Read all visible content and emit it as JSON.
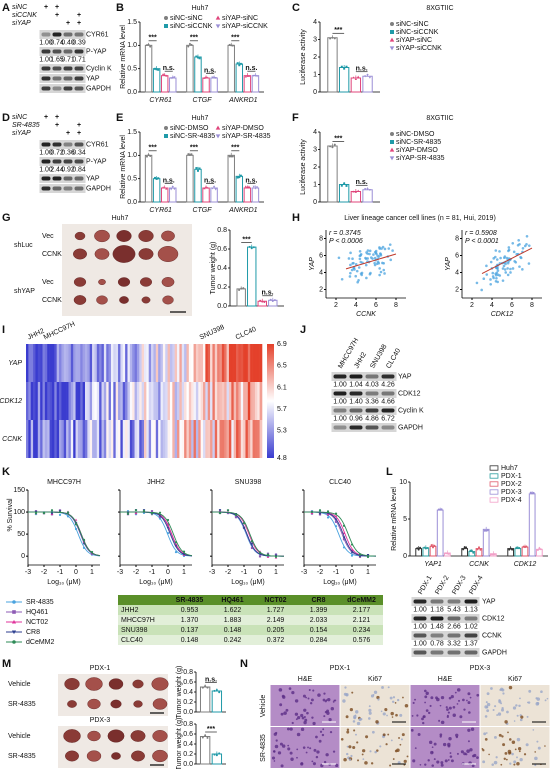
{
  "panels": {
    "A": {
      "label": "A",
      "treatments": [
        {
          "name": "siNC",
          "signs": [
            "+",
            "+",
            null,
            null
          ]
        },
        {
          "name": "siCCNK",
          "signs": [
            null,
            "+",
            null,
            "+"
          ]
        },
        {
          "name": "siYAP",
          "signs": [
            null,
            null,
            "+",
            "+"
          ]
        }
      ],
      "blots": [
        {
          "name": "CYR61",
          "quant": [
            "1.00",
            "0.74",
            "0.40",
            "0.39"
          ]
        },
        {
          "name": "P-YAP",
          "quant": [
            "1.00",
            "1.65",
            "0.71",
            "0.71"
          ]
        },
        {
          "name": "Cyclin K"
        },
        {
          "name": "YAP"
        },
        {
          "name": "GAPDH"
        }
      ]
    },
    "B": {
      "label": "B",
      "type": "bar",
      "title": "Huh7",
      "ylabel": "Relative mRNA level",
      "categories": [
        "CYR61",
        "CTGF",
        "ANKRD1"
      ],
      "ylim": [
        0,
        1.5
      ],
      "yticks": [
        {
          "value": 0,
          "label": "0.0"
        },
        0.5,
        {
          "value": 1,
          "label": "1.0"
        },
        1.5
      ],
      "series": [
        {
          "name": "siNC-siNC",
          "color": "#7f7f7f",
          "marker": "circle",
          "values": [
            1,
            1,
            1
          ]
        },
        {
          "name": "siNC-siCCNK",
          "color": "#1f9aa8",
          "marker": "square",
          "values": [
            0.5,
            0.75,
            0.6
          ]
        },
        {
          "name": "siYAP-siNC",
          "color": "#e0457b",
          "marker": "triangle",
          "values": [
            0.35,
            0.3,
            0.35
          ]
        },
        {
          "name": "siYAP-siCCNK",
          "color": "#9b8fd6",
          "marker": "triangle-down",
          "values": [
            0.3,
            0.3,
            0.35
          ]
        }
      ],
      "annotations": [
        "***",
        "n.s.",
        "***",
        "n.s.",
        "***",
        "n.s."
      ]
    },
    "C": {
      "label": "C",
      "type": "bar",
      "title": "8XGTIIC",
      "ylabel": "Luciferase activity",
      "ylim": [
        0,
        4
      ],
      "yticks": [
        0,
        1,
        2,
        3,
        4
      ],
      "series": [
        {
          "name": "siNC-siNC",
          "color": "#7f7f7f",
          "marker": "circle",
          "values": [
            3.1
          ]
        },
        {
          "name": "siNC-siCCNK",
          "color": "#1f9aa8",
          "marker": "square",
          "values": [
            1.4
          ]
        },
        {
          "name": "siYAP-siNC",
          "color": "#e0457b",
          "marker": "triangle",
          "values": [
            0.8
          ]
        },
        {
          "name": "siYAP-siCCNK",
          "color": "#9b8fd6",
          "marker": "triangle-down",
          "values": [
            0.9
          ]
        }
      ],
      "annotations": [
        "***",
        "n.s."
      ]
    },
    "D": {
      "label": "D",
      "treatments": [
        {
          "name": "siNC",
          "signs": [
            "+",
            "+",
            null,
            null
          ]
        },
        {
          "name": "SR-4835",
          "signs": [
            null,
            "+",
            null,
            "+"
          ]
        },
        {
          "name": "siYAP",
          "signs": [
            null,
            null,
            "+",
            "+"
          ]
        }
      ],
      "blots": [
        {
          "name": "CYR61",
          "quant": [
            "1.00",
            "0.72",
            "0.36",
            "0.34"
          ]
        },
        {
          "name": "P-YAP",
          "quant": [
            "1.00",
            "2.44",
            "0.92",
            "0.84"
          ]
        },
        {
          "name": "YAP"
        },
        {
          "name": "GAPDH"
        }
      ]
    },
    "E": {
      "label": "E",
      "type": "bar",
      "title": "Huh7",
      "ylabel": "Relative mRNA level",
      "categories": [
        "CYR61",
        "CTGF",
        "ANKRD1"
      ],
      "ylim": [
        0,
        1.5
      ],
      "yticks": [
        {
          "value": 0,
          "label": "0.0"
        },
        0.5,
        {
          "value": 1,
          "label": "1.0"
        },
        1.5
      ],
      "series": [
        {
          "name": "siNC-DMSO",
          "color": "#7f7f7f",
          "marker": "circle",
          "values": [
            1,
            1,
            1
          ]
        },
        {
          "name": "siNC-SR-4835",
          "color": "#1f9aa8",
          "marker": "square",
          "values": [
            0.5,
            0.7,
            0.55
          ]
        },
        {
          "name": "siYAP-DMSO",
          "color": "#e0457b",
          "marker": "triangle",
          "values": [
            0.3,
            0.3,
            0.3
          ]
        },
        {
          "name": "siYAP-SR-4835",
          "color": "#9b8fd6",
          "marker": "triangle-down",
          "values": [
            0.3,
            0.3,
            0.3
          ]
        }
      ],
      "annotations": [
        "***",
        "n.s.",
        "***",
        "n.s.",
        "***",
        "n.s."
      ]
    },
    "F": {
      "label": "F",
      "type": "bar",
      "title": "8XGTIIC",
      "ylabel": "Luciferase activity",
      "ylim": [
        0,
        4
      ],
      "yticks": [
        0,
        1,
        2,
        3,
        4
      ],
      "series": [
        {
          "name": "siNC-DMSO",
          "color": "#7f7f7f",
          "marker": "circle",
          "values": [
            3.2
          ]
        },
        {
          "name": "siNC-SR-4835",
          "color": "#1f9aa8",
          "marker": "square",
          "values": [
            1.0
          ]
        },
        {
          "name": "siYAP-DMSO",
          "color": "#e0457b",
          "marker": "triangle",
          "values": [
            0.6
          ]
        },
        {
          "name": "siYAP-SR-4835",
          "color": "#9b8fd6",
          "marker": "triangle-down",
          "values": [
            0.7
          ]
        }
      ],
      "annotations": [
        "***",
        "n.s."
      ]
    },
    "G": {
      "label": "G",
      "title": "Huh7",
      "groups": [
        {
          "name": "shLuc",
          "rows": [
            "Vec",
            "CCNK"
          ]
        },
        {
          "name": "shYAP",
          "rows": [
            "Vec",
            "CCNK"
          ]
        }
      ],
      "chart": {
        "type": "bar",
        "ylabel": "Tumor weight (g)",
        "ylim": [
          0,
          0.8
        ],
        "yticks": [
          {
            "value": 0,
            "label": "0.0"
          },
          0.2,
          0.4,
          0.6,
          0.8
        ],
        "values": [
          0.18,
          0.62,
          0.05,
          0.06
        ],
        "colors": [
          "#7f7f7f",
          "#1f9aa8",
          "#e0457b",
          "#9b8fd6"
        ],
        "annotations": [
          "***",
          "n.s."
        ]
      }
    },
    "H": {
      "label": "H",
      "title": "Liver lineage cancer cell lines (n = 81, Hui, 2019)",
      "plots": [
        {
          "type": "scatter",
          "ylabel": "YAP",
          "xlabel": "CCNK",
          "r": "r = 0.3745",
          "p": "P < 0.0006",
          "xlim": [
            1,
            9
          ],
          "xticks": [
            2,
            4,
            6,
            8
          ],
          "ylim": [
            1,
            9
          ],
          "yticks": [
            2,
            4,
            6,
            8
          ]
        },
        {
          "type": "scatter",
          "ylabel": "YAP",
          "xlabel": "CDK12",
          "r": "r = 0.5908",
          "p": "P < 0.0001",
          "xlim": [
            1,
            9
          ],
          "xticks": [
            2,
            4,
            6,
            8
          ],
          "ylim": [
            1,
            9
          ],
          "yticks": [
            2,
            4,
            6,
            8
          ]
        }
      ]
    },
    "I": {
      "label": "I",
      "columns": [
        "JHH2",
        "MHCC97H",
        "SNU398",
        "CLC40"
      ],
      "rows": [
        "YAP",
        "CDK12",
        "CCNK"
      ],
      "colorbar": {
        "ticks": [
          6.9,
          6.5,
          6.1,
          5.7,
          5.3,
          4.8
        ],
        "colors": [
          "#e4412b",
          "#ffffff",
          "#3a3ccf"
        ]
      }
    },
    "J": {
      "label": "J",
      "lanes": [
        "MHCC97H",
        "JHH2",
        "SNU398",
        "CLC40"
      ],
      "blots": [
        {
          "name": "YAP",
          "quant": [
            "1.00",
            "1.04",
            "4.03",
            "4.26"
          ]
        },
        {
          "name": "CDK12",
          "quant": [
            "1.00",
            "1.40",
            "3.36",
            "4.66"
          ]
        },
        {
          "name": "Cyclin K",
          "quant": [
            "1.00",
            "0.96",
            "4.86",
            "6.72"
          ]
        },
        {
          "name": "GAPDH"
        }
      ]
    },
    "K": {
      "label": "K",
      "ylabel": "% Survival",
      "xlabel": "Log₁₀ (μM)",
      "xlim": [
        -3,
        1.5
      ],
      "xticks": [
        -3,
        -2,
        -1,
        0,
        1
      ],
      "ylim": [
        -20,
        150
      ],
      "yticks": [
        0,
        50,
        100,
        150
      ],
      "plots": [
        "MHCC97H",
        "JHH2",
        "SNU398",
        "CLC40"
      ],
      "series": [
        {
          "name": "SR-4835",
          "color": "#4aa3df",
          "marker": "circle"
        },
        {
          "name": "HQ461",
          "color": "#8e5bb5",
          "marker": "square"
        },
        {
          "name": "NCT02",
          "color": "#e0339b",
          "marker": "triangle"
        },
        {
          "name": "CR8",
          "color": "#2c3e8f",
          "marker": "triangle-down"
        },
        {
          "name": "dCeMM2",
          "color": "#2e8b57",
          "marker": "circle"
        }
      ],
      "table": {
        "columns": [
          "SR-4835",
          "HQ461",
          "NCT02",
          "CR8",
          "dCeMM2"
        ],
        "highlight_column": "SR-4835",
        "highlight_color": "#d9342b",
        "rows": [
          {
            "name": "JHH2",
            "values": [
              "0.953",
              "1.622",
              "1.727",
              "1.399",
              "2.177"
            ]
          },
          {
            "name": "MHCC97H",
            "values": [
              "1.370",
              "1.883",
              "2.149",
              "2.033",
              "2.121"
            ]
          },
          {
            "name": "SNU398",
            "values": [
              "0.137",
              "0.148",
              "0.205",
              "0.154",
              "0.234"
            ]
          },
          {
            "name": "CLC40",
            "values": [
              "0.148",
              "0.242",
              "0.372",
              "0.284",
              "0.576"
            ]
          }
        ]
      }
    },
    "L": {
      "label": "L",
      "type": "bar",
      "ylabel": "Relative mRNA level",
      "categories": [
        "YAP1",
        "CCNK",
        "CDK12"
      ],
      "ylim": [
        0,
        10
      ],
      "yticks": [
        0,
        5,
        10
      ],
      "series": [
        {
          "name": "Huh7",
          "color": "#333333",
          "marker": "box",
          "values": [
            1,
            1,
            1
          ]
        },
        {
          "name": "PDX-1",
          "color": "#2a9d9f",
          "marker": "box",
          "values": [
            1.1,
            0.6,
            1.0
          ]
        },
        {
          "name": "PDX-2",
          "color": "#e05a6b",
          "marker": "box",
          "values": [
            1.3,
            1.0,
            1.2
          ]
        },
        {
          "name": "PDX-3",
          "color": "#9b8fd6",
          "marker": "box",
          "values": [
            6.2,
            3.6,
            8.4
          ]
        },
        {
          "name": "PDX-4",
          "color": "#f2a0c8",
          "marker": "box",
          "values": [
            0.4,
            0.3,
            0.9
          ]
        }
      ],
      "blot": {
        "lanes": [
          "PDX-1",
          "PDX-2",
          "PDX-3",
          "PDX-4"
        ],
        "blots": [
          {
            "name": "YAP",
            "quant": [
              "1.00",
              "1.18",
              "5.43",
              "1.13"
            ]
          },
          {
            "name": "CDK12",
            "quant": [
              "1.00",
              "1.48",
              "2.66",
              "1.02"
            ]
          },
          {
            "name": "CCNK",
            "quant": [
              "1.00",
              "0.78",
              "3.32",
              "1.37"
            ]
          },
          {
            "name": "GAPDH"
          }
        ]
      }
    },
    "M": {
      "label": "M",
      "titles": [
        "PDX-1",
        "PDX-3"
      ],
      "rows": [
        "Vehicle",
        "SR-4835"
      ],
      "charts": [
        {
          "type": "bar",
          "ylabel": "Tumor weight (g)",
          "ylim": [
            0,
            0.8
          ],
          "yticks": [
            {
              "value": 0,
              "label": "0.0"
            },
            0.2,
            0.4,
            0.6,
            0.8
          ],
          "values": [
            0.5,
            0.42
          ],
          "colors": [
            "#7f7f7f",
            "#1f9aa8"
          ],
          "annotations": [
            "n.s."
          ]
        },
        {
          "type": "bar",
          "ylabel": "Tumor weight (g)",
          "ylim": [
            0,
            0.8
          ],
          "yticks": [
            {
              "value": 0,
              "label": "0.0"
            },
            0.2,
            0.4,
            0.6,
            0.8
          ],
          "values": [
            0.55,
            0.2
          ],
          "colors": [
            "#7f7f7f",
            "#1f9aa8"
          ],
          "annotations": [
            "***"
          ]
        }
      ]
    },
    "N": {
      "label": "N",
      "columns": [
        {
          "model": "PDX-1",
          "stains": [
            "H&E",
            "Ki67"
          ]
        },
        {
          "model": "PDX-3",
          "stains": [
            "H&E",
            "Ki67"
          ]
        }
      ],
      "rows": [
        "Vehicle",
        "SR-4835"
      ]
    }
  }
}
